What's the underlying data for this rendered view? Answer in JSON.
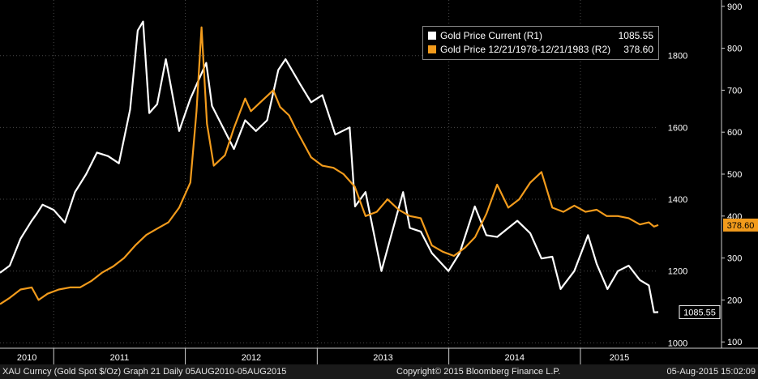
{
  "chart_data": {
    "type": "line",
    "x_range": [
      "2010-08-05",
      "2015-08-05"
    ],
    "year_labels": [
      "2010",
      "2011",
      "2012",
      "2013",
      "2014",
      "2015"
    ],
    "left_axis": {
      "ticks": [
        1000,
        1200,
        1400,
        1600,
        1800
      ],
      "range": [
        985,
        1955
      ]
    },
    "right_axis": {
      "ticks": [
        100,
        200,
        300,
        400,
        500,
        600,
        700,
        800,
        900
      ],
      "range": [
        85,
        915
      ]
    },
    "grid": true,
    "legend_position": "top-right",
    "series": [
      {
        "name": "Gold Price Current (R1)",
        "axis": "left",
        "color": "#ffffff",
        "last_value_label": "1085.55",
        "points": [
          [
            "2010-08-05",
            1195
          ],
          [
            "2010-09-01",
            1215
          ],
          [
            "2010-10-01",
            1290
          ],
          [
            "2010-11-01",
            1340
          ],
          [
            "2010-11-15",
            1360
          ],
          [
            "2010-12-01",
            1385
          ],
          [
            "2011-01-01",
            1370
          ],
          [
            "2011-02-01",
            1335
          ],
          [
            "2011-03-01",
            1420
          ],
          [
            "2011-04-01",
            1470
          ],
          [
            "2011-05-01",
            1530
          ],
          [
            "2011-06-01",
            1520
          ],
          [
            "2011-07-01",
            1500
          ],
          [
            "2011-08-01",
            1650
          ],
          [
            "2011-08-22",
            1870
          ],
          [
            "2011-09-06",
            1895
          ],
          [
            "2011-09-23",
            1640
          ],
          [
            "2011-10-15",
            1665
          ],
          [
            "2011-11-08",
            1790
          ],
          [
            "2011-12-15",
            1590
          ],
          [
            "2012-01-15",
            1680
          ],
          [
            "2012-02-28",
            1780
          ],
          [
            "2012-03-15",
            1660
          ],
          [
            "2012-05-15",
            1540
          ],
          [
            "2012-06-15",
            1620
          ],
          [
            "2012-07-15",
            1590
          ],
          [
            "2012-08-15",
            1620
          ],
          [
            "2012-09-15",
            1760
          ],
          [
            "2012-10-05",
            1790
          ],
          [
            "2012-11-15",
            1720
          ],
          [
            "2012-12-15",
            1670
          ],
          [
            "2013-01-15",
            1690
          ],
          [
            "2013-02-20",
            1580
          ],
          [
            "2013-04-01",
            1600
          ],
          [
            "2013-04-16",
            1380
          ],
          [
            "2013-05-15",
            1420
          ],
          [
            "2013-06-28",
            1200
          ],
          [
            "2013-08-27",
            1420
          ],
          [
            "2013-09-15",
            1320
          ],
          [
            "2013-10-15",
            1310
          ],
          [
            "2013-11-15",
            1250
          ],
          [
            "2013-12-31",
            1200
          ],
          [
            "2014-01-31",
            1250
          ],
          [
            "2014-03-14",
            1380
          ],
          [
            "2014-04-15",
            1300
          ],
          [
            "2014-05-15",
            1295
          ],
          [
            "2014-06-15",
            1320
          ],
          [
            "2014-07-10",
            1340
          ],
          [
            "2014-08-15",
            1305
          ],
          [
            "2014-09-15",
            1235
          ],
          [
            "2014-10-15",
            1240
          ],
          [
            "2014-11-07",
            1150
          ],
          [
            "2014-12-15",
            1200
          ],
          [
            "2015-01-22",
            1300
          ],
          [
            "2015-02-15",
            1220
          ],
          [
            "2015-03-17",
            1150
          ],
          [
            "2015-04-15",
            1200
          ],
          [
            "2015-05-15",
            1215
          ],
          [
            "2015-06-15",
            1175
          ],
          [
            "2015-07-10",
            1160
          ],
          [
            "2015-07-24",
            1085
          ],
          [
            "2015-08-05",
            1085.55
          ]
        ]
      },
      {
        "name": "Gold Price 12/21/1978-12/21/1983 (R2)",
        "axis": "right",
        "color": "#f29b1c",
        "last_value_label": "378.60",
        "points": [
          [
            "2010-08-05",
            190
          ],
          [
            "2010-09-01",
            205
          ],
          [
            "2010-10-01",
            225
          ],
          [
            "2010-11-01",
            230
          ],
          [
            "2010-11-20",
            200
          ],
          [
            "2010-12-15",
            215
          ],
          [
            "2011-01-15",
            225
          ],
          [
            "2011-02-15",
            230
          ],
          [
            "2011-03-15",
            230
          ],
          [
            "2011-04-15",
            245
          ],
          [
            "2011-05-15",
            265
          ],
          [
            "2011-06-15",
            280
          ],
          [
            "2011-07-15",
            300
          ],
          [
            "2011-08-15",
            330
          ],
          [
            "2011-09-15",
            355
          ],
          [
            "2011-10-15",
            370
          ],
          [
            "2011-11-15",
            385
          ],
          [
            "2011-12-15",
            420
          ],
          [
            "2012-01-15",
            480
          ],
          [
            "2012-02-01",
            650
          ],
          [
            "2012-02-15",
            850
          ],
          [
            "2012-03-01",
            620
          ],
          [
            "2012-03-20",
            520
          ],
          [
            "2012-04-20",
            545
          ],
          [
            "2012-05-15",
            610
          ],
          [
            "2012-06-15",
            680
          ],
          [
            "2012-07-01",
            650
          ],
          [
            "2012-08-01",
            675
          ],
          [
            "2012-09-01",
            700
          ],
          [
            "2012-09-20",
            660
          ],
          [
            "2012-10-15",
            640
          ],
          [
            "2012-11-01",
            610
          ],
          [
            "2012-12-15",
            540
          ],
          [
            "2013-01-15",
            520
          ],
          [
            "2013-02-15",
            515
          ],
          [
            "2013-03-15",
            500
          ],
          [
            "2013-04-15",
            470
          ],
          [
            "2013-05-15",
            400
          ],
          [
            "2013-06-15",
            410
          ],
          [
            "2013-07-15",
            440
          ],
          [
            "2013-08-15",
            415
          ],
          [
            "2013-09-15",
            400
          ],
          [
            "2013-10-15",
            395
          ],
          [
            "2013-11-15",
            330
          ],
          [
            "2013-12-15",
            315
          ],
          [
            "2014-01-15",
            305
          ],
          [
            "2014-02-15",
            325
          ],
          [
            "2014-03-15",
            350
          ],
          [
            "2014-04-15",
            405
          ],
          [
            "2014-05-15",
            475
          ],
          [
            "2014-06-15",
            420
          ],
          [
            "2014-07-15",
            440
          ],
          [
            "2014-08-15",
            480
          ],
          [
            "2014-09-15",
            505
          ],
          [
            "2014-10-15",
            420
          ],
          [
            "2014-11-15",
            410
          ],
          [
            "2014-12-15",
            425
          ],
          [
            "2015-01-15",
            410
          ],
          [
            "2015-02-15",
            415
          ],
          [
            "2015-03-15",
            400
          ],
          [
            "2015-04-15",
            400
          ],
          [
            "2015-05-15",
            395
          ],
          [
            "2015-06-15",
            380
          ],
          [
            "2015-07-10",
            385
          ],
          [
            "2015-07-24",
            375
          ],
          [
            "2015-08-05",
            378.6
          ]
        ]
      }
    ]
  },
  "legend": {
    "items": [
      {
        "label": "Gold Price Current (R1)",
        "value": "1085.55",
        "color": "#ffffff"
      },
      {
        "label": "Gold Price 12/21/1978-12/21/1983 (R2)",
        "value": "378.60",
        "color": "#f29b1c"
      }
    ]
  },
  "footer": {
    "left": "XAU Curncy (Gold Spot  $/Oz) Graph 21  Daily 05AUG2010-05AUG2015",
    "center": "Copyright© 2015 Bloomberg Finance L.P.",
    "right": "05-Aug-2015 15:02:09"
  }
}
